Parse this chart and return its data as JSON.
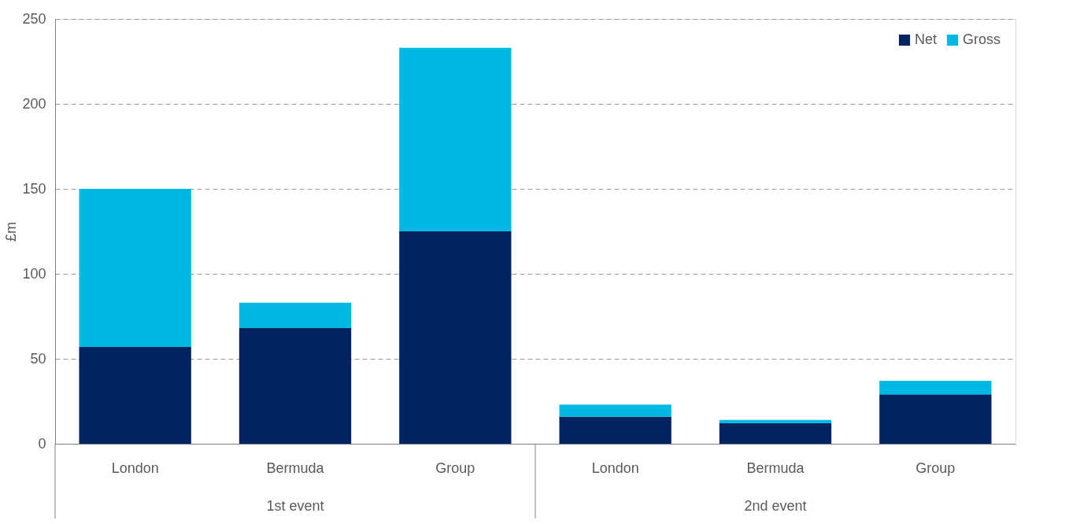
{
  "chart_data": {
    "type": "bar",
    "stacked": true,
    "ylabel": "£m",
    "categories": [
      "London",
      "Bermuda",
      "Group",
      "London",
      "Bermuda",
      "Group"
    ],
    "series": [
      {
        "name": "Net",
        "color": "#00245f",
        "values": [
          57,
          68,
          125,
          16,
          12,
          29
        ]
      },
      {
        "name": "Gross",
        "color": "#00b8e4",
        "values": [
          93,
          15,
          108,
          7,
          2,
          8
        ]
      }
    ],
    "ylim": [
      0,
      250
    ],
    "yticks": [
      0,
      50,
      100,
      150,
      200,
      250
    ],
    "grid": "y",
    "legend": "top right",
    "annotations": [
      "1st event",
      "2nd event"
    ]
  }
}
